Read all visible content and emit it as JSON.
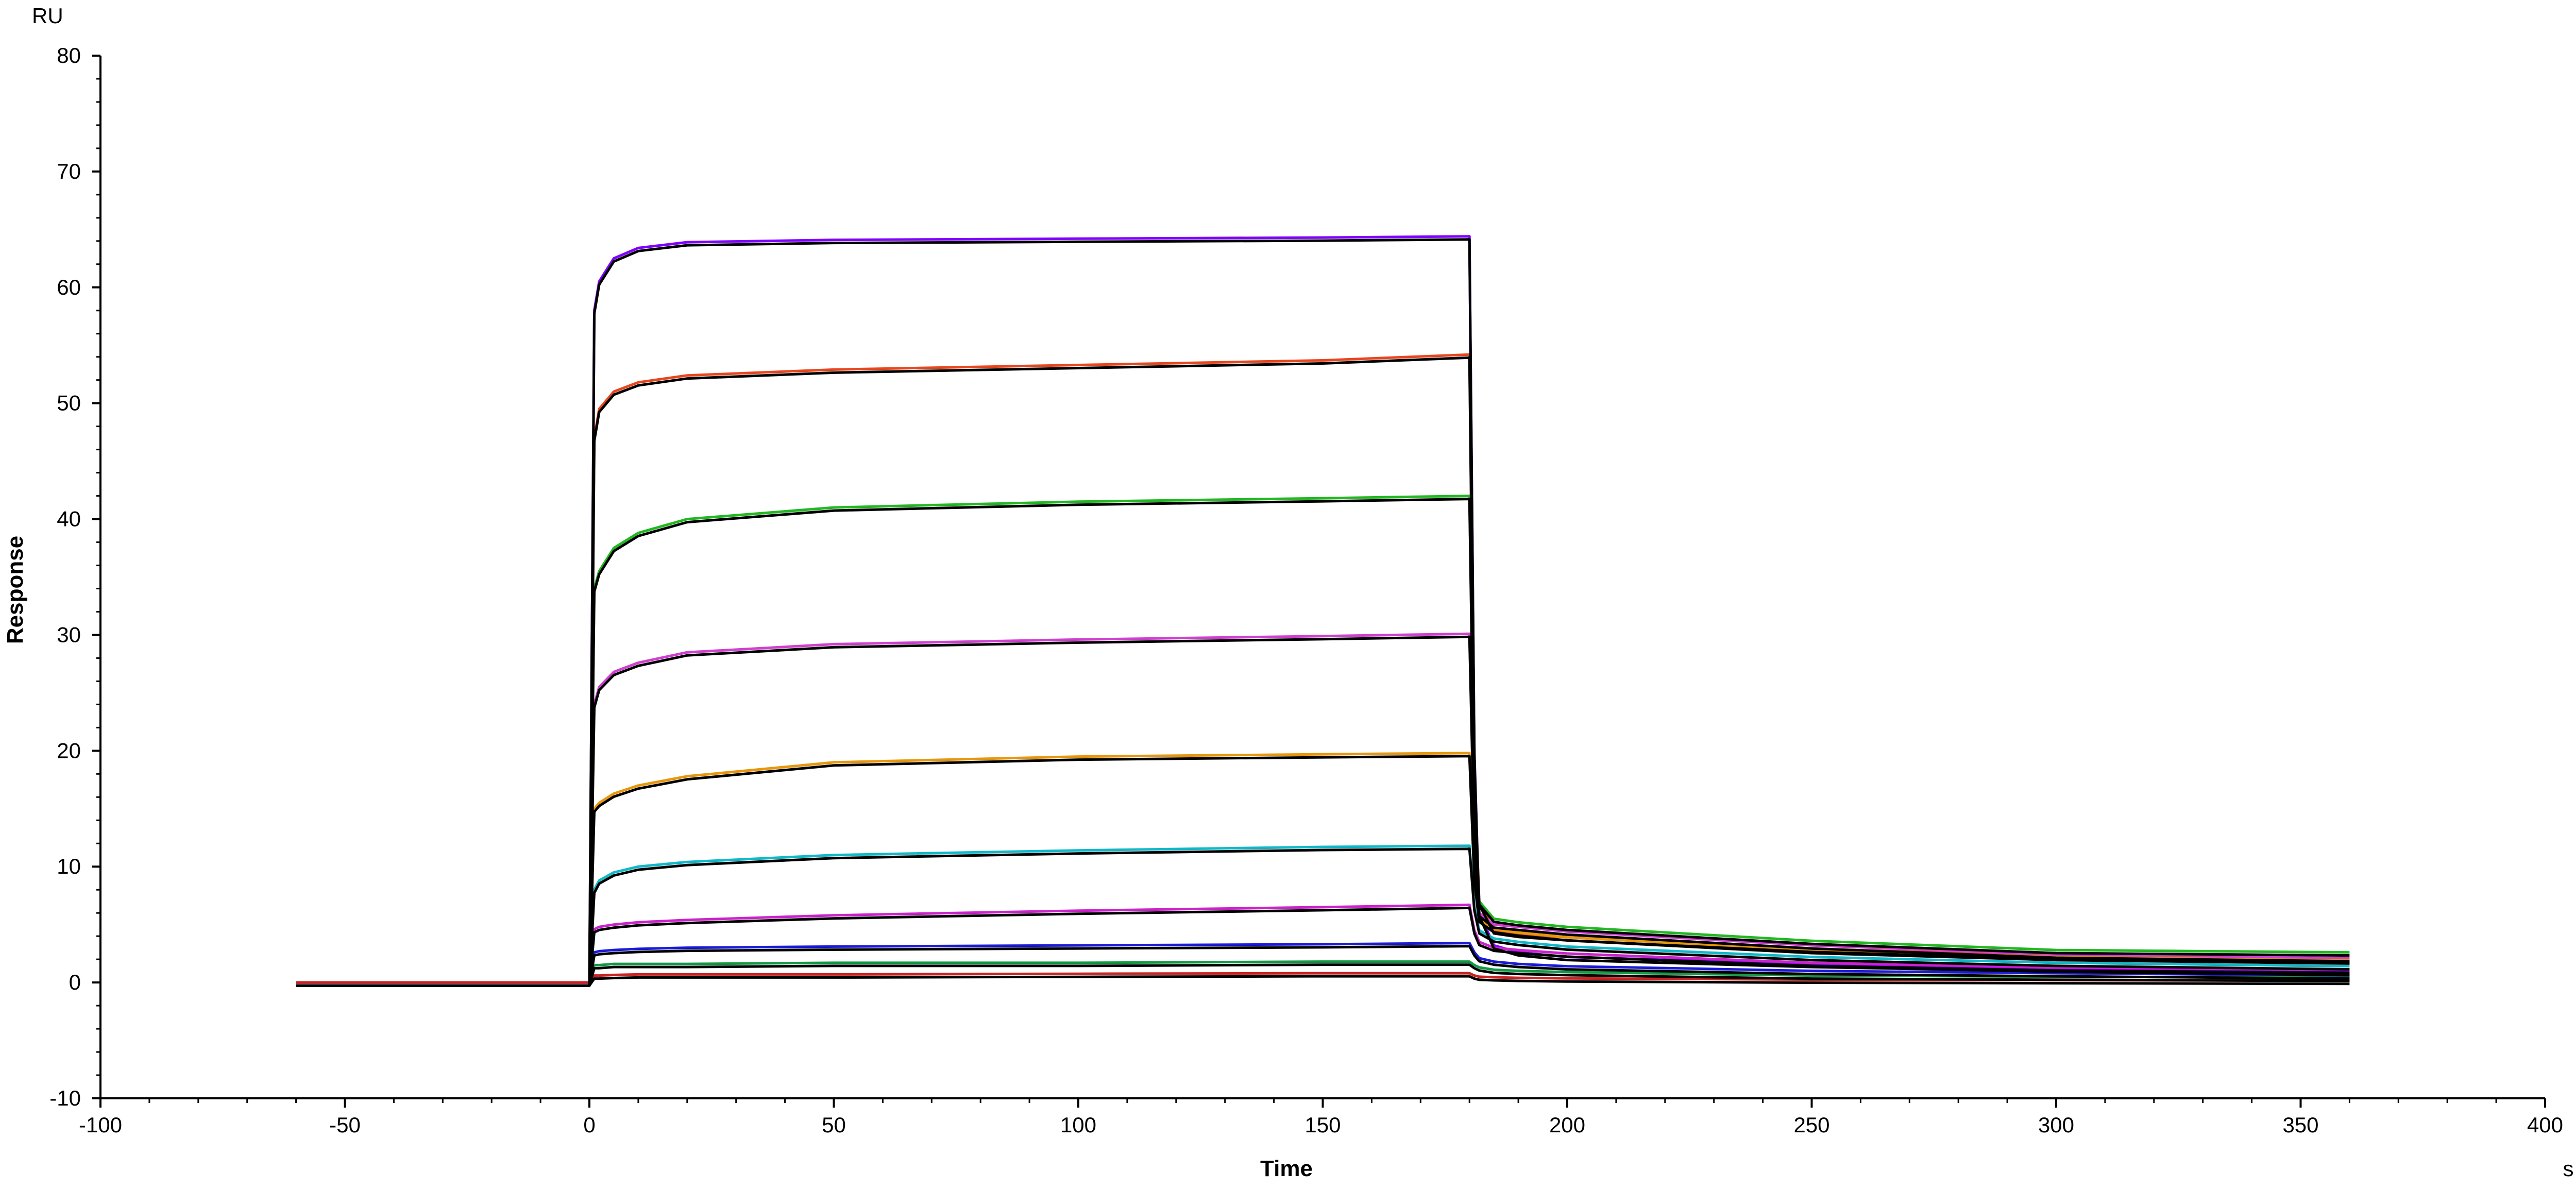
{
  "chart_data": {
    "type": "line",
    "title": "",
    "xlabel": "Time",
    "ylabel": "Response",
    "x_unit": "s",
    "y_unit": "RU",
    "xlim": [
      -100,
      400
    ],
    "ylim": [
      -10,
      80
    ],
    "xticks": [
      -100,
      -50,
      0,
      50,
      100,
      150,
      200,
      250,
      300,
      350,
      400
    ],
    "yticks": [
      -10,
      0,
      10,
      20,
      30,
      40,
      50,
      60,
      70,
      80
    ],
    "grid": false,
    "legend": "none",
    "fit_color": "#000000",
    "series": [
      {
        "color": "#8000ff",
        "x": [
          -60,
          0,
          1,
          2,
          5,
          10,
          20,
          50,
          100,
          150,
          180,
          181,
          182,
          185,
          190,
          200,
          250,
          300,
          360
        ],
        "values": [
          0,
          0,
          58,
          60.5,
          62.5,
          63.4,
          63.9,
          64.1,
          64.2,
          64.3,
          64.4,
          20,
          6,
          3.2,
          2.6,
          2.2,
          1.6,
          1.2,
          0.9
        ]
      },
      {
        "color": "#e8461e",
        "x": [
          -60,
          0,
          1,
          2,
          5,
          10,
          20,
          50,
          100,
          150,
          180,
          181,
          182,
          185,
          190,
          200,
          250,
          300,
          360
        ],
        "values": [
          0,
          0,
          47,
          49.5,
          51,
          51.8,
          52.4,
          52.9,
          53.3,
          53.7,
          54.2,
          18,
          7,
          4.5,
          4.2,
          3.9,
          2.9,
          2.3,
          2.0
        ]
      },
      {
        "color": "#22b822",
        "x": [
          -60,
          0,
          1,
          2,
          5,
          10,
          20,
          50,
          100,
          150,
          180,
          181,
          182,
          185,
          190,
          200,
          250,
          300,
          360
        ],
        "values": [
          0,
          0,
          34,
          35.5,
          37.5,
          38.8,
          40,
          41,
          41.5,
          41.8,
          42,
          15,
          7,
          5.5,
          5.2,
          4.8,
          3.6,
          2.8,
          2.6
        ]
      },
      {
        "color": "#d040d0",
        "x": [
          -60,
          0,
          1,
          2,
          5,
          10,
          20,
          50,
          100,
          150,
          180,
          181,
          182,
          185,
          190,
          200,
          250,
          300,
          360
        ],
        "values": [
          0,
          0,
          24,
          25.5,
          26.8,
          27.6,
          28.5,
          29.2,
          29.6,
          29.9,
          30.1,
          12,
          6,
          5,
          4.8,
          4.4,
          3.2,
          2.4,
          2.1
        ]
      },
      {
        "color": "#e8960c",
        "x": [
          -60,
          0,
          1,
          2,
          5,
          10,
          20,
          50,
          100,
          150,
          180,
          181,
          182,
          185,
          190,
          200,
          250,
          300,
          360
        ],
        "values": [
          0,
          0,
          15,
          15.5,
          16.3,
          17,
          17.8,
          19,
          19.5,
          19.7,
          19.8,
          9,
          5.5,
          4.6,
          4.3,
          3.9,
          2.8,
          2.2,
          1.9
        ]
      },
      {
        "color": "#10b8c8",
        "x": [
          -60,
          0,
          1,
          2,
          5,
          10,
          20,
          50,
          100,
          150,
          180,
          181,
          182,
          185,
          190,
          200,
          250,
          300,
          360
        ],
        "values": [
          0,
          0,
          8,
          8.8,
          9.5,
          10,
          10.4,
          11,
          11.4,
          11.7,
          11.8,
          6.5,
          4.5,
          3.8,
          3.5,
          3.1,
          2.2,
          1.7,
          1.4
        ]
      },
      {
        "color": "#cc22cc",
        "x": [
          -60,
          0,
          1,
          2,
          5,
          10,
          20,
          50,
          100,
          150,
          180,
          181,
          182,
          185,
          190,
          200,
          250,
          300,
          360
        ],
        "values": [
          0,
          0,
          4.6,
          4.8,
          5,
          5.2,
          5.4,
          5.8,
          6.2,
          6.5,
          6.7,
          4.5,
          3.5,
          3,
          2.8,
          2.5,
          1.7,
          1.3,
          1.1
        ]
      },
      {
        "color": "#1a1ad8",
        "x": [
          -60,
          0,
          1,
          2,
          5,
          10,
          20,
          50,
          100,
          150,
          180,
          181,
          182,
          185,
          190,
          200,
          250,
          300,
          360
        ],
        "values": [
          0,
          0,
          2.6,
          2.7,
          2.8,
          2.9,
          3,
          3.1,
          3.2,
          3.3,
          3.4,
          2.6,
          2.1,
          1.8,
          1.6,
          1.4,
          1,
          0.8,
          0.6
        ]
      },
      {
        "color": "#119944",
        "x": [
          -60,
          0,
          1,
          2,
          5,
          10,
          20,
          50,
          100,
          150,
          180,
          181,
          182,
          185,
          190,
          200,
          250,
          300,
          360
        ],
        "values": [
          0,
          0,
          1.5,
          1.5,
          1.6,
          1.6,
          1.6,
          1.7,
          1.7,
          1.8,
          1.8,
          1.5,
          1.3,
          1.1,
          1,
          0.9,
          0.6,
          0.5,
          0.4
        ]
      },
      {
        "color": "#cc2222",
        "x": [
          -60,
          0,
          1,
          2,
          5,
          10,
          20,
          50,
          100,
          150,
          180,
          181,
          182,
          185,
          190,
          200,
          250,
          300,
          360
        ],
        "values": [
          0,
          0,
          0.6,
          0.6,
          0.65,
          0.7,
          0.7,
          0.7,
          0.75,
          0.8,
          0.8,
          0.6,
          0.5,
          0.45,
          0.4,
          0.35,
          0.25,
          0.2,
          0.15
        ]
      }
    ]
  }
}
